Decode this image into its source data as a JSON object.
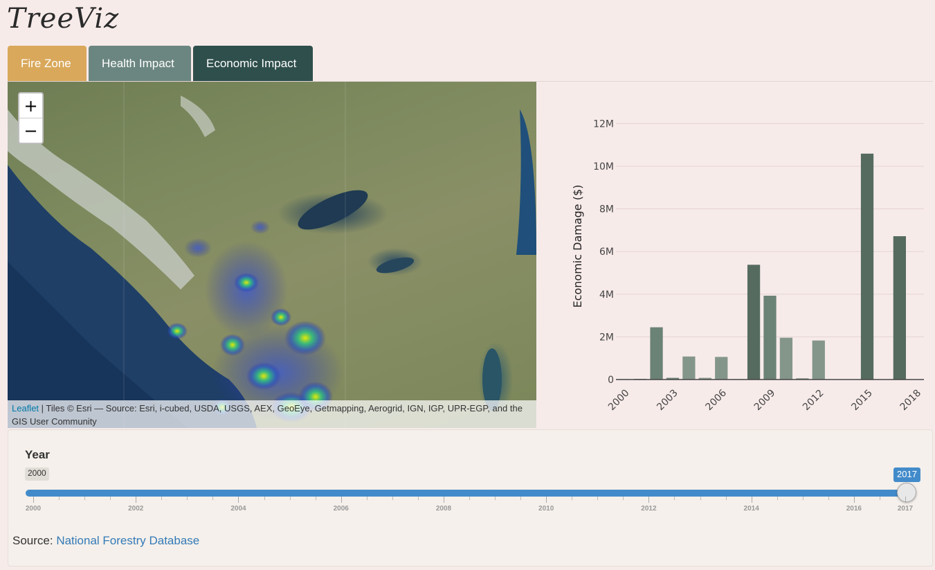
{
  "app": {
    "title": "TreeViz"
  },
  "tabs": [
    {
      "label": "Fire Zone",
      "color": "#d9a85b"
    },
    {
      "label": "Health Impact",
      "color": "#6b8680"
    },
    {
      "label": "Economic Impact",
      "color": "#2f4f4c"
    }
  ],
  "map": {
    "zoom_in": "+",
    "zoom_out": "−",
    "attribution_link": "Leaflet",
    "attribution_text": " | Tiles © Esri — Source: Esri, i-cubed, USDA, USGS, AEX, GeoEye, Getmapping, Aerogrid, IGN, IGP, UPR-EGP, and the GIS User Community"
  },
  "slider": {
    "label": "Year",
    "min": 2000,
    "max": 2017,
    "value": 2017,
    "min_label": "2000",
    "value_label": "2017",
    "tick_labels": [
      "2000",
      "2002",
      "2004",
      "2006",
      "2008",
      "2010",
      "2012",
      "2014",
      "2016",
      "2017"
    ],
    "accent": "#428bca"
  },
  "source": {
    "prefix": "Source: ",
    "link": "National Forestry Database"
  },
  "chart_data": {
    "type": "bar",
    "title": "",
    "xlabel": "",
    "ylabel": "Economic Damage ($)",
    "x": [
      2000,
      2001,
      2002,
      2003,
      2004,
      2005,
      2006,
      2007,
      2008,
      2009,
      2010,
      2011,
      2012,
      2013,
      2014,
      2015,
      2016,
      2017,
      2018
    ],
    "values": [
      20000,
      30000,
      2450000,
      80000,
      1080000,
      80000,
      1060000,
      20000,
      5380000,
      3930000,
      1960000,
      60000,
      1830000,
      10000,
      10000,
      10590000,
      10000,
      6720000,
      0
    ],
    "colors": [
      "#566b60",
      "#566b60",
      "#6b8276",
      "#6b8276",
      "#84968a",
      "#84968a",
      "#84968a",
      "#6b8276",
      "#566b60",
      "#6b8276",
      "#84968a",
      "#84968a",
      "#84968a",
      "#566b60",
      "#566b60",
      "#566b60",
      "#566b60",
      "#566b60",
      "#566b60"
    ],
    "x_tick_labels": [
      "2000",
      "2003",
      "2006",
      "2009",
      "2012",
      "2015",
      "2018"
    ],
    "y_ticks": [
      0,
      2000000,
      4000000,
      6000000,
      8000000,
      10000000,
      12000000
    ],
    "y_tick_labels": [
      "0",
      "2M",
      "4M",
      "6M",
      "8M",
      "10M",
      "12M"
    ],
    "ylim": [
      0,
      12500000
    ],
    "grid": true
  }
}
